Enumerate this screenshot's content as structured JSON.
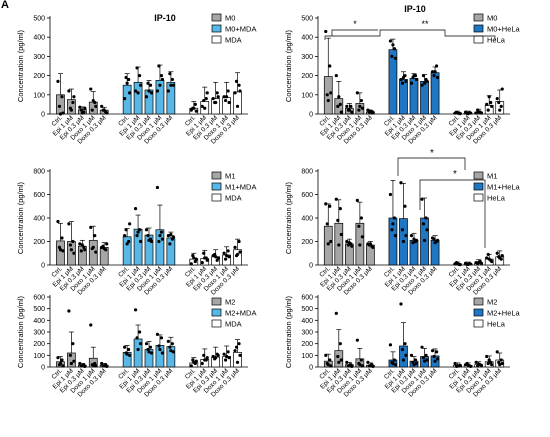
{
  "figure": {
    "panel_letter": "A",
    "colors": {
      "grey": "#a6a6a6",
      "light_blue": "#57b7e6",
      "dark_blue": "#1f77c4",
      "white": "#ffffff",
      "axis": "#000000"
    }
  },
  "chart_data": [
    {
      "type": "bar",
      "title": "IP-10",
      "ylabel": "Concentration (pg/ml)",
      "ylim": [
        0,
        500
      ],
      "yticks": [
        0,
        100,
        200,
        300,
        400,
        500
      ],
      "categories": [
        "Ctrl.",
        "Epi 1 μM",
        "Epi 0.3 μM",
        "Doxo 1 μM",
        "Doxo 0.3 μM"
      ],
      "series": [
        {
          "name": "M0",
          "color": "grey",
          "values": [
            100,
            75,
            22,
            62,
            20
          ],
          "err": [
            110,
            55,
            15,
            55,
            15
          ],
          "points": [
            [
              170,
              90,
              40,
              5,
              0
            ],
            [
              120,
              60,
              30,
              90,
              20
            ],
            [
              35,
              10,
              20,
              30,
              5
            ],
            [
              130,
              60,
              20,
              40,
              70
            ],
            [
              40,
              10,
              20,
              5,
              20
            ]
          ]
        },
        {
          "name": "M0+MDA",
          "color": "light_blue",
          "values": [
            150,
            165,
            125,
            175,
            165
          ],
          "err": [
            60,
            80,
            50,
            80,
            55
          ],
          "points": [
            [
              80,
              180,
              190,
              110,
              160
            ],
            [
              120,
              200,
              240,
              150,
              110
            ],
            [
              90,
              150,
              160,
              110,
              120
            ],
            [
              120,
              200,
              250,
              180,
              150
            ],
            [
              120,
              180,
              210,
              150,
              150
            ]
          ]
        },
        {
          "name": "MDA",
          "color": "white",
          "values": [
            30,
            65,
            80,
            85,
            115
          ],
          "err": [
            35,
            75,
            85,
            80,
            100
          ],
          "points": [
            [
              20,
              50,
              30,
              15,
              30
            ],
            [
              40,
              80,
              70,
              110,
              30
            ],
            [
              80,
              110,
              60,
              90,
              60
            ],
            [
              90,
              120,
              70,
              60,
              90
            ],
            [
              110,
              150,
              170,
              120,
              40
            ]
          ]
        }
      ],
      "legend": "top-right"
    },
    {
      "type": "bar",
      "title": "IP-10",
      "ylabel": "Concentration (pg/ml)",
      "ylim": [
        0,
        500
      ],
      "yticks": [
        0,
        100,
        200,
        300,
        400,
        500
      ],
      "categories": [
        "Ctrl.",
        "Epi 1 μM",
        "Epi 0.3 μM",
        "Doxo 1 μM",
        "Doxo 0.3 μM"
      ],
      "series": [
        {
          "name": "M0",
          "color": "grey",
          "values": [
            195,
            80,
            30,
            55,
            10
          ],
          "err": [
            200,
            90,
            25,
            55,
            10
          ],
          "points": [
            [
              430,
              250,
              100,
              110,
              70
            ],
            [
              200,
              50,
              40,
              10,
              90
            ],
            [
              40,
              40,
              20,
              10,
              20
            ],
            [
              110,
              70,
              20,
              30,
              40
            ],
            [
              20,
              5,
              10,
              10,
              15
            ]
          ]
        },
        {
          "name": "M0+HeLa",
          "color": "dark_blue",
          "values": [
            335,
            180,
            185,
            170,
            215
          ],
          "err": [
            55,
            40,
            25,
            35,
            30
          ],
          "points": [
            [
              380,
              340,
              300,
              290,
              360
            ],
            [
              180,
              200,
              160,
              170,
              190
            ],
            [
              160,
              200,
              190,
              180,
              200
            ],
            [
              150,
              180,
              200,
              170,
              160
            ],
            [
              220,
              250,
              200,
              190,
              220
            ]
          ]
        },
        {
          "name": "HeLa",
          "color": "white",
          "values": [
            5,
            5,
            10,
            45,
            65
          ],
          "err": [
            10,
            10,
            15,
            50,
            60
          ],
          "points": [
            [
              5,
              3,
              8,
              2,
              5
            ],
            [
              10,
              5,
              3,
              5,
              2
            ],
            [
              5,
              10,
              20,
              5,
              10
            ],
            [
              50,
              60,
              20,
              40,
              90
            ],
            [
              80,
              40,
              60,
              130,
              20
            ]
          ]
        }
      ],
      "annotations": [
        "*",
        "**"
      ],
      "legend": "top-right"
    },
    {
      "type": "bar",
      "title": "",
      "ylabel": "Concentration (pg/ml)",
      "ylim": [
        0,
        800
      ],
      "yticks": [
        0,
        200,
        400,
        600,
        800
      ],
      "categories": [
        "Ctrl.",
        "Epi 1 μM",
        "Epi 0.3 μM",
        "Doxo 1 μM",
        "Doxo 0.3 μM"
      ],
      "series": [
        {
          "name": "M1",
          "color": "grey",
          "values": [
            205,
            200,
            160,
            210,
            150
          ],
          "err": [
            150,
            170,
            50,
            120,
            40
          ],
          "points": [
            [
              370,
              230,
              150,
              120,
              130
            ],
            [
              350,
              200,
              170,
              100,
              130
            ],
            [
              180,
              150,
              120,
              130,
              170
            ],
            [
              320,
              250,
              140,
              110,
              150
            ],
            [
              150,
              130,
              160,
              180,
              140
            ]
          ]
        },
        {
          "name": "M1+MDA",
          "color": "light_blue",
          "values": [
            240,
            305,
            255,
            300,
            230
          ],
          "err": [
            70,
            120,
            60,
            210,
            50
          ],
          "points": [
            [
              250,
              200,
              300,
              350,
              180
            ],
            [
              480,
              300,
              250,
              200,
              280
            ],
            [
              300,
              220,
              250,
              200,
              210
            ],
            [
              660,
              280,
              200,
              220,
              250
            ],
            [
              250,
              220,
              180,
              240,
              260
            ]
          ]
        },
        {
          "name": "MDA",
          "color": "white",
          "values": [
            50,
            55,
            70,
            85,
            130
          ],
          "err": [
            50,
            70,
            60,
            70,
            90
          ],
          "points": [
            [
              10,
              30,
              80,
              50,
              60
            ],
            [
              20,
              60,
              100,
              40,
              60
            ],
            [
              80,
              40,
              90,
              60,
              70
            ],
            [
              100,
              120,
              50,
              70,
              80
            ],
            [
              150,
              200,
              80,
              110,
              90
            ]
          ]
        }
      ],
      "legend": "top-right"
    },
    {
      "type": "bar",
      "title": "",
      "ylabel": "Concentration (pg/ml)",
      "ylim": [
        0,
        800
      ],
      "yticks": [
        0,
        200,
        400,
        600,
        800
      ],
      "categories": [
        "Ctrl.",
        "Epi 1 μM",
        "Epi 0.3 μM",
        "Doxo 1 μM",
        "Doxo 0.3 μM"
      ],
      "series": [
        {
          "name": "M1",
          "color": "grey",
          "values": [
            330,
            355,
            180,
            355,
            170
          ],
          "err": [
            190,
            200,
            40,
            180,
            30
          ],
          "points": [
            [
              520,
              500,
              350,
              200,
              180
            ],
            [
              560,
              480,
              380,
              260,
              170
            ],
            [
              200,
              180,
              170,
              160,
              190
            ],
            [
              550,
              400,
              330,
              240,
              170
            ],
            [
              180,
              160,
              170,
              150,
              180
            ]
          ]
        },
        {
          "name": "M1+HeLa",
          "color": "dark_blue",
          "values": [
            400,
            395,
            210,
            400,
            210
          ],
          "err": [
            320,
            300,
            60,
            170,
            40
          ],
          "points": [
            [
              600,
              400,
              300,
              250,
              350
            ],
            [
              700,
              500,
              300,
              250,
              200
            ],
            [
              250,
              200,
              190,
              210,
              220
            ],
            [
              560,
              400,
              350,
              300,
              210
            ],
            [
              230,
              200,
              220,
              210,
              190
            ]
          ]
        },
        {
          "name": "HeLa",
          "color": "white",
          "values": [
            10,
            10,
            20,
            50,
            70
          ],
          "err": [
            15,
            15,
            25,
            40,
            50
          ],
          "points": [
            [
              10,
              5,
              20,
              3,
              10
            ],
            [
              15,
              10,
              5,
              8,
              5
            ],
            [
              20,
              30,
              10,
              15,
              20
            ],
            [
              60,
              40,
              90,
              30,
              50
            ],
            [
              100,
              50,
              70,
              80,
              60
            ]
          ]
        }
      ],
      "annotations": [
        "*",
        "*"
      ],
      "legend": "top-right"
    },
    {
      "type": "bar",
      "title": "",
      "ylabel": "Concentration (pg/ml)",
      "ylim": [
        0,
        600
      ],
      "yticks": [
        0,
        100,
        200,
        300,
        400,
        500,
        600
      ],
      "categories": [
        "Ctrl.",
        "Epi 1 μM",
        "Epi 0.3 μM",
        "Doxo 1 μM",
        "Doxo 0.3 μM"
      ],
      "series": [
        {
          "name": "M2",
          "color": "grey",
          "values": [
            45,
            120,
            15,
            75,
            15
          ],
          "err": [
            45,
            180,
            15,
            95,
            15
          ],
          "points": [
            [
              80,
              60,
              20,
              10,
              30
            ],
            [
              480,
              200,
              100,
              50,
              30
            ],
            [
              30,
              20,
              10,
              5,
              10
            ],
            [
              360,
              30,
              20,
              10,
              15
            ],
            [
              30,
              20,
              10,
              5,
              10
            ]
          ]
        },
        {
          "name": "M2+MDA",
          "color": "light_blue",
          "values": [
            125,
            240,
            150,
            185,
            175
          ],
          "err": [
            60,
            120,
            70,
            90,
            80
          ],
          "points": [
            [
              170,
              150,
              120,
              100,
              110
            ],
            [
              490,
              300,
              250,
              200,
              150
            ],
            [
              200,
              170,
              150,
              120,
              130
            ],
            [
              280,
              250,
              180,
              120,
              150
            ],
            [
              220,
              200,
              170,
              130,
              140
            ]
          ]
        },
        {
          "name": "MDA",
          "color": "white",
          "values": [
            35,
            65,
            85,
            90,
            125
          ],
          "err": [
            45,
            90,
            85,
            90,
            110
          ],
          "points": [
            [
              10,
              30,
              60,
              50,
              40
            ],
            [
              30,
              60,
              100,
              80,
              60
            ],
            [
              90,
              110,
              70,
              100,
              80
            ],
            [
              110,
              130,
              60,
              80,
              90
            ],
            [
              140,
              200,
              170,
              100,
              40
            ]
          ]
        }
      ],
      "legend": "top-right"
    },
    {
      "type": "bar",
      "title": "",
      "ylabel": "Concentration (pg/ml)",
      "ylim": [
        0,
        600
      ],
      "yticks": [
        0,
        100,
        200,
        300,
        400,
        500,
        600
      ],
      "categories": [
        "Ctrl.",
        "Epi 1 μM",
        "Epi 0.3 μM",
        "Doxo 1 μM",
        "Doxo 0.3 μM"
      ],
      "series": [
        {
          "name": "M2",
          "color": "grey",
          "values": [
            50,
            140,
            20,
            70,
            15
          ],
          "err": [
            60,
            180,
            20,
            90,
            20
          ],
          "points": [
            [
              100,
              60,
              30,
              10,
              20
            ],
            [
              460,
              200,
              90,
              60,
              40
            ],
            [
              40,
              20,
              10,
              5,
              10
            ],
            [
              230,
              60,
              30,
              10,
              20
            ],
            [
              40,
              20,
              10,
              5,
              10
            ]
          ]
        },
        {
          "name": "M2+HeLa",
          "color": "dark_blue",
          "values": [
            60,
            180,
            50,
            90,
            95
          ],
          "err": [
            70,
            200,
            40,
            70,
            60
          ],
          "points": [
            [
              190,
              60,
              40,
              20,
              30
            ],
            [
              540,
              200,
              150,
              100,
              60
            ],
            [
              100,
              60,
              40,
              30,
              20
            ],
            [
              170,
              100,
              80,
              60,
              50
            ],
            [
              140,
              130,
              90,
              70,
              50
            ]
          ]
        },
        {
          "name": "HeLa",
          "color": "white",
          "values": [
            15,
            15,
            20,
            45,
            60
          ],
          "err": [
            20,
            20,
            25,
            50,
            60
          ],
          "points": [
            [
              30,
              10,
              5,
              15,
              10
            ],
            [
              20,
              10,
              30,
              5,
              15
            ],
            [
              40,
              20,
              10,
              15,
              25
            ],
            [
              90,
              40,
              30,
              20,
              60
            ],
            [
              130,
              60,
              40,
              30,
              20
            ]
          ]
        }
      ],
      "legend": "top-right"
    }
  ]
}
